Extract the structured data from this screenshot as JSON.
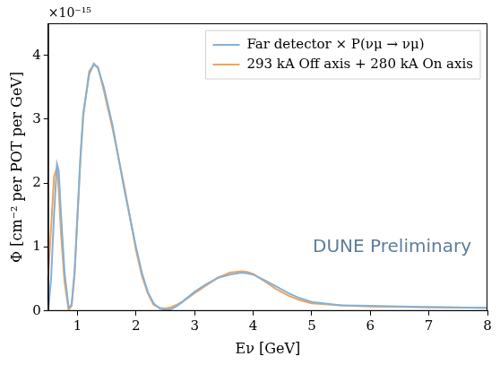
{
  "chart_data": {
    "type": "line",
    "x_label": "Eν [GeV]",
    "y_label": "Φ [cm⁻² per POT per GeV]",
    "annotations": [
      {
        "text": "×10⁻¹⁵",
        "color": "#000000"
      },
      {
        "text": "DUNE Preliminary",
        "color": "#5d7e9b"
      }
    ],
    "x": [
      0.5,
      0.55,
      0.6,
      0.65,
      0.68,
      0.72,
      0.78,
      0.85,
      0.9,
      0.95,
      1.0,
      1.05,
      1.1,
      1.2,
      1.28,
      1.35,
      1.45,
      1.6,
      1.8,
      2.0,
      2.1,
      2.2,
      2.3,
      2.4,
      2.5,
      2.6,
      2.7,
      2.8,
      3.0,
      3.2,
      3.4,
      3.6,
      3.8,
      3.9,
      4.0,
      4.2,
      4.4,
      4.6,
      4.8,
      5.0,
      5.5,
      6.0,
      7.0,
      8.0
    ],
    "series": [
      {
        "name": "Far detector × P(νμ → νμ)",
        "color": "#82b1d8",
        "values": [
          0,
          0.5,
          1.5,
          2.3,
          2.2,
          1.5,
          0.6,
          0.05,
          0.1,
          0.6,
          1.5,
          2.4,
          3.1,
          3.7,
          3.87,
          3.8,
          3.5,
          2.9,
          1.9,
          1.0,
          0.6,
          0.3,
          0.12,
          0.04,
          0.02,
          0.03,
          0.08,
          0.15,
          0.3,
          0.42,
          0.52,
          0.57,
          0.6,
          0.59,
          0.57,
          0.48,
          0.38,
          0.28,
          0.2,
          0.14,
          0.09,
          0.08,
          0.06,
          0.05
        ]
      },
      {
        "name": "293 kA Off axis + 280 kA On axis",
        "color": "#f3a35a",
        "values": [
          0.55,
          1.3,
          2.1,
          2.25,
          1.9,
          1.2,
          0.45,
          0.02,
          0.08,
          0.55,
          1.45,
          2.35,
          3.05,
          3.75,
          3.85,
          3.82,
          3.45,
          2.85,
          1.95,
          0.95,
          0.55,
          0.28,
          0.1,
          0.05,
          0.04,
          0.06,
          0.1,
          0.15,
          0.28,
          0.4,
          0.52,
          0.6,
          0.62,
          0.61,
          0.58,
          0.46,
          0.34,
          0.24,
          0.17,
          0.12,
          0.09,
          0.07,
          0.06,
          0.05
        ]
      }
    ],
    "xlim": [
      0.5,
      8
    ],
    "xticks": [
      1,
      2,
      3,
      4,
      5,
      6,
      7,
      8
    ],
    "ylim": [
      0,
      4.5
    ],
    "yticks": [
      0,
      1,
      2,
      3,
      4
    ],
    "grid": false,
    "legend": "upper right"
  }
}
